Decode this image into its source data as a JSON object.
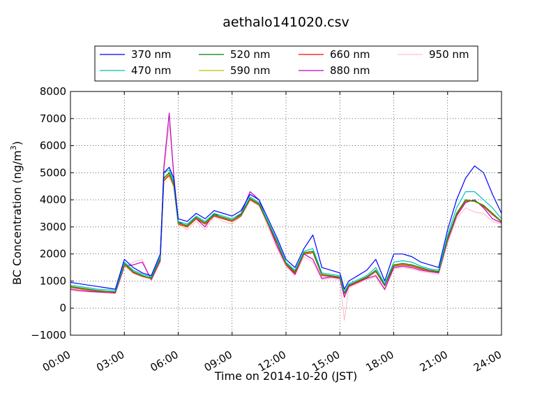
{
  "chart_data": {
    "type": "line",
    "title": "aethalo141020.csv",
    "xlabel": "Time on 2014-10-20 (JST)",
    "ylabel": "BC Concentration (ng/m",
    "ylabel_sup": "3",
    "ylabel_tail": ")",
    "xlim": [
      "00:00",
      "24:00"
    ],
    "ylim": [
      -1000,
      8000
    ],
    "grid": true,
    "legend_position": "top-center",
    "x_ticks": [
      "00:00",
      "03:00",
      "06:00",
      "09:00",
      "12:00",
      "15:00",
      "18:00",
      "21:00",
      "24:00"
    ],
    "y_ticks": [
      "−1000",
      "0",
      "1000",
      "2000",
      "3000",
      "4000",
      "5000",
      "6000",
      "7000",
      "8000"
    ],
    "x_hours": [
      0,
      0.5,
      1,
      1.5,
      2,
      2.5,
      3,
      3.5,
      4,
      4.5,
      5,
      5.2,
      5.5,
      5.75,
      6,
      6.5,
      7,
      7.5,
      8,
      8.5,
      9,
      9.5,
      10,
      10.5,
      11,
      11.5,
      12,
      12.5,
      13,
      13.5,
      14,
      14.5,
      15,
      15.25,
      15.5,
      16,
      16.5,
      17,
      17.5,
      18,
      18.5,
      19,
      19.5,
      20,
      20.5,
      21,
      21.5,
      22,
      22.5,
      23,
      23.5,
      24
    ],
    "series": [
      {
        "name": "370 nm",
        "color": "#0000ff",
        "values": [
          950,
          900,
          850,
          800,
          750,
          700,
          1800,
          1500,
          1300,
          1200,
          2000,
          5000,
          5200,
          4800,
          3300,
          3200,
          3500,
          3300,
          3600,
          3500,
          3400,
          3600,
          4200,
          4000,
          3300,
          2600,
          1800,
          1500,
          2200,
          2700,
          1500,
          1400,
          1300,
          700,
          1000,
          1200,
          1400,
          1800,
          1000,
          2000,
          2000,
          1900,
          1700,
          1600,
          1500,
          2900,
          4000,
          4800,
          5250,
          5000,
          4200,
          3500
        ]
      },
      {
        "name": "470 nm",
        "color": "#00bfbf",
        "values": [
          850,
          800,
          750,
          700,
          680,
          650,
          1700,
          1400,
          1250,
          1150,
          1900,
          5000,
          5100,
          4700,
          3200,
          3100,
          3400,
          3200,
          3500,
          3400,
          3300,
          3500,
          4100,
          3900,
          3200,
          2500,
          1700,
          1400,
          2100,
          2200,
          1300,
          1250,
          1200,
          600,
          900,
          1050,
          1200,
          1500,
          900,
          1700,
          1750,
          1700,
          1550,
          1450,
          1400,
          2700,
          3700,
          4300,
          4300,
          4000,
          3700,
          3300
        ]
      },
      {
        "name": "520 nm",
        "color": "#008000",
        "values": [
          800,
          750,
          700,
          650,
          620,
          600,
          1650,
          1350,
          1200,
          1100,
          1850,
          4800,
          5000,
          4600,
          3150,
          3050,
          3350,
          3150,
          3450,
          3350,
          3250,
          3450,
          4050,
          3850,
          3150,
          2450,
          1650,
          1350,
          2050,
          2100,
          1250,
          1200,
          1150,
          550,
          850,
          1000,
          1150,
          1400,
          850,
          1600,
          1650,
          1600,
          1500,
          1400,
          1350,
          2600,
          3500,
          4000,
          3950,
          3800,
          3500,
          3200
        ]
      },
      {
        "name": "590 nm",
        "color": "#bfbf00",
        "values": [
          780,
          730,
          680,
          640,
          610,
          590,
          1620,
          1330,
          1190,
          1090,
          1830,
          4750,
          4950,
          4550,
          3120,
          3030,
          3330,
          3130,
          3430,
          3330,
          3230,
          3430,
          4030,
          3830,
          3130,
          2430,
          1630,
          1330,
          2030,
          2080,
          1230,
          1190,
          1140,
          540,
          840,
          990,
          1140,
          1380,
          840,
          1580,
          1630,
          1580,
          1480,
          1390,
          1340,
          2580,
          3480,
          3980,
          3930,
          3780,
          3480,
          3190
        ]
      },
      {
        "name": "660 nm",
        "color": "#ff0000",
        "values": [
          760,
          710,
          660,
          630,
          600,
          580,
          1600,
          1300,
          1170,
          1080,
          1800,
          4700,
          4900,
          4500,
          3100,
          3000,
          3300,
          3100,
          3400,
          3300,
          3200,
          3400,
          4000,
          3800,
          3100,
          2400,
          1600,
          1300,
          2000,
          2050,
          1200,
          1170,
          1120,
          520,
          820,
          970,
          1120,
          1350,
          820,
          1550,
          1600,
          1550,
          1450,
          1380,
          1330,
          2550,
          3450,
          3950,
          3950,
          3750,
          3450,
          3180
        ]
      },
      {
        "name": "880 nm",
        "color": "#bf00bf",
        "values": [
          700,
          650,
          620,
          600,
          580,
          560,
          1550,
          1600,
          1700,
          1050,
          1750,
          5200,
          7200,
          4900,
          3200,
          3000,
          3300,
          3000,
          3500,
          3300,
          3200,
          3500,
          4300,
          4000,
          3100,
          2300,
          1600,
          1250,
          2000,
          1800,
          1100,
          1150,
          1100,
          400,
          800,
          950,
          1100,
          1200,
          700,
          1500,
          1550,
          1500,
          1400,
          1350,
          1300,
          2500,
          3400,
          3900,
          4000,
          3700,
          3300,
          3150
        ]
      },
      {
        "name": "950 nm",
        "color": "#ffc0cb",
        "values": [
          650,
          620,
          600,
          580,
          560,
          540,
          1500,
          1700,
          1800,
          1000,
          1700,
          5000,
          6800,
          4900,
          3100,
          2900,
          3200,
          2900,
          3400,
          3200,
          3100,
          3400,
          4100,
          3900,
          3000,
          2200,
          1550,
          1200,
          1900,
          1700,
          1050,
          1100,
          1050,
          -450,
          750,
          900,
          1050,
          1150,
          650,
          1450,
          1500,
          1450,
          1350,
          1300,
          1250,
          2400,
          3300,
          3700,
          3550,
          3500,
          3200,
          3100
        ]
      }
    ]
  }
}
